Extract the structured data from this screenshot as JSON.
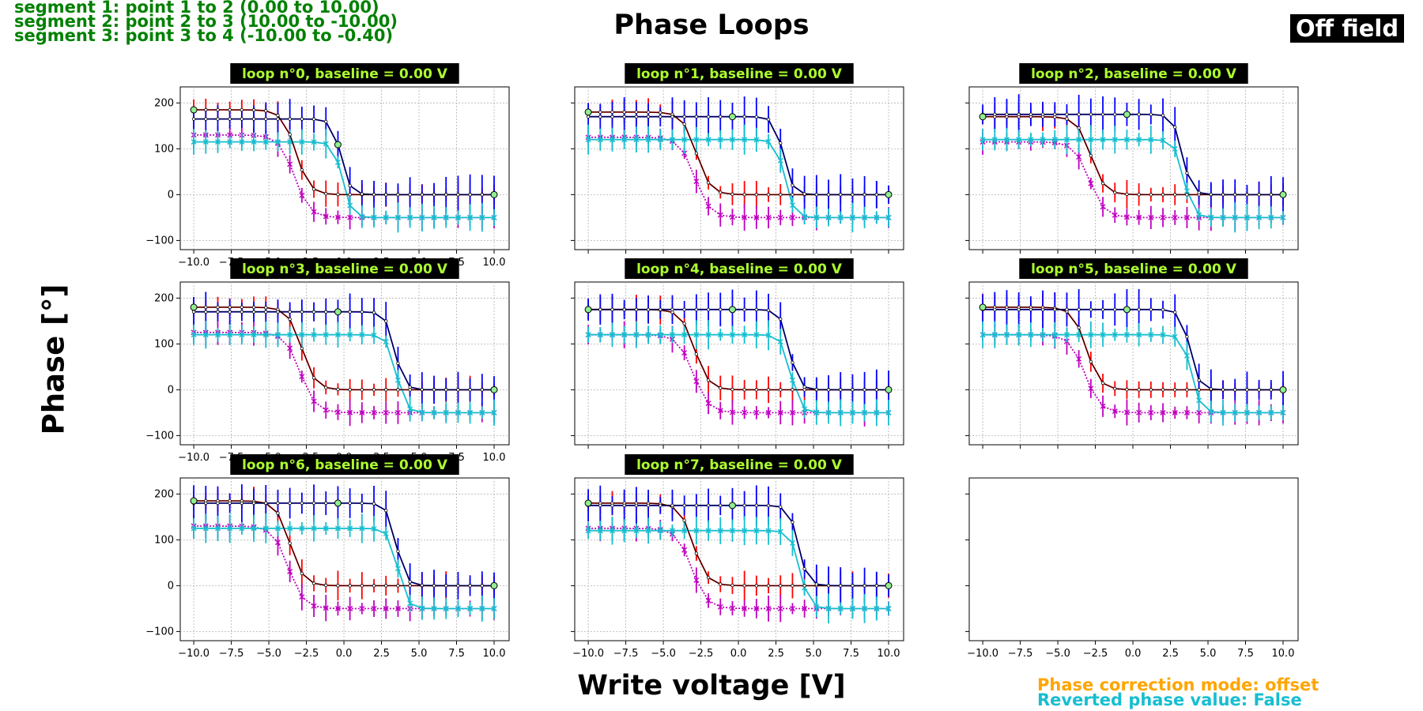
{
  "header": {
    "segments": [
      "segment 1: point 1 to 2 (0.00 to 10.00)",
      "segment 2: point 2 to 3 (10.00 to -10.00)",
      "segment 3: point 3 to 4 (-10.00 to -0.40)"
    ],
    "title": "Phase Loops",
    "field_badge": "Off field"
  },
  "footer": {
    "correction_mode": "Phase correction mode: offset",
    "reverted": "Reverted phase value: False"
  },
  "colors": {
    "segment_text": "#008000",
    "correction": "#ffa500",
    "reverted": "#17becf",
    "red_series": "#ff0000",
    "blue_series": "#0000ff",
    "cyan_series": "#17becf",
    "magenta_series": "#bf00bf",
    "mean_line": "#000000",
    "markers": "#90ee90",
    "title_text": "#adff2f"
  },
  "chart_data": {
    "type": "line",
    "xlabel": "Write voltage [V]",
    "ylabel": "Phase [°]",
    "xlim": [
      -10.9,
      11.0
    ],
    "ylim": [
      -120,
      235
    ],
    "xticks": [
      "−10.0",
      "−7.5",
      "−5.0",
      "−2.5",
      "0.0",
      "2.5",
      "5.0",
      "7.5",
      "10.0"
    ],
    "yticks": [
      "−100",
      "0",
      "100",
      "200"
    ],
    "grid": true,
    "panels": [
      {
        "title": "loop n°0, baseline = 0.00 V",
        "down_center": -3.2,
        "up_center": -0.2,
        "up_high": 165,
        "cyan_high": 115,
        "top": 185,
        "mag_top": 130,
        "labels": true
      },
      {
        "title": "loop n°1, baseline = 0.00 V",
        "down_center": -2.8,
        "up_center": 3.0,
        "up_high": 170,
        "cyan_high": 120,
        "top": 180,
        "mag_top": 125,
        "labels": false
      },
      {
        "title": "loop n°2, baseline = 0.00 V",
        "down_center": -2.8,
        "up_center": 3.3,
        "up_high": 175,
        "cyan_high": 120,
        "top": 170,
        "mag_top": 115,
        "labels": false
      },
      {
        "title": "loop n°3, baseline = 0.00 V",
        "down_center": -2.8,
        "up_center": 3.4,
        "up_high": 170,
        "cyan_high": 120,
        "top": 180,
        "mag_top": 125,
        "labels": true
      },
      {
        "title": "loop n°4, baseline = 0.00 V",
        "down_center": -2.9,
        "up_center": 3.4,
        "up_high": 175,
        "cyan_high": 120,
        "top": 175,
        "mag_top": 120,
        "labels": false
      },
      {
        "title": "loop n°5, baseline = 0.00 V",
        "down_center": -3.1,
        "up_center": 3.8,
        "up_high": 175,
        "cyan_high": 120,
        "top": 180,
        "mag_top": 120,
        "labels": false
      },
      {
        "title": "loop n°6, baseline = 0.00 V",
        "down_center": -3.6,
        "up_center": 3.5,
        "up_high": 180,
        "cyan_high": 125,
        "top": 185,
        "mag_top": 130,
        "labels": true
      },
      {
        "title": "loop n°7, baseline = 0.00 V",
        "down_center": -3.0,
        "up_center": 4.0,
        "up_high": 175,
        "cyan_high": 120,
        "top": 180,
        "mag_top": 125,
        "labels": true
      },
      {
        "title": "",
        "empty": true,
        "labels": true
      }
    ]
  }
}
